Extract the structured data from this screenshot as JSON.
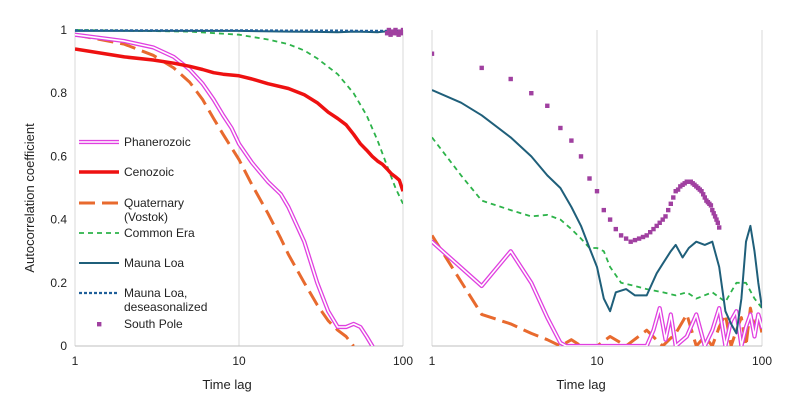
{
  "chart_data": [
    {
      "type": "line",
      "panel": "left",
      "x_scale": "log",
      "xlabel": "Time lag",
      "ylabel": "Autocorrelation coefficient",
      "xlim": [
        1,
        100
      ],
      "ylim": [
        0,
        1
      ],
      "x_ticks": [
        "1",
        "10",
        "100"
      ],
      "y_ticks": [
        "0",
        "0.2",
        "0.4",
        "0.6",
        "0.8",
        "1"
      ],
      "legend": [
        "Phanerozoic",
        "Cenozoic",
        "Quaternary",
        "(Vostok)",
        "Common Era",
        "Mauna Loa",
        "Mauna Loa,",
        "deseasonalized",
        "South Pole"
      ],
      "series": [
        {
          "name": "Phanerozoic",
          "color": "#e040e0",
          "style": "double",
          "x": [
            1,
            2,
            3,
            4,
            5,
            6,
            7,
            8,
            9,
            10,
            12,
            15,
            18,
            20,
            25,
            30,
            35,
            40,
            45,
            50,
            55,
            60,
            65
          ],
          "y": [
            0.985,
            0.965,
            0.945,
            0.915,
            0.875,
            0.83,
            0.78,
            0.73,
            0.69,
            0.64,
            0.58,
            0.52,
            0.48,
            0.44,
            0.33,
            0.2,
            0.11,
            0.06,
            0.06,
            0.07,
            0.06,
            0.03,
            0.0
          ]
        },
        {
          "name": "Cenozoic",
          "color": "#ee1111",
          "style": "thick",
          "x": [
            1,
            2,
            3,
            4,
            5,
            6,
            7,
            8,
            10,
            12,
            15,
            20,
            25,
            30,
            35,
            40,
            45,
            50,
            55,
            60,
            65,
            70,
            75,
            80,
            85,
            90,
            95,
            100
          ],
          "y": [
            0.94,
            0.915,
            0.905,
            0.895,
            0.885,
            0.875,
            0.865,
            0.86,
            0.855,
            0.845,
            0.83,
            0.815,
            0.795,
            0.77,
            0.74,
            0.72,
            0.7,
            0.67,
            0.64,
            0.62,
            0.6,
            0.585,
            0.575,
            0.56,
            0.545,
            0.535,
            0.525,
            0.49
          ]
        },
        {
          "name": "Quaternary (Vostok)",
          "color": "#e86a2e",
          "style": "longdash",
          "x": [
            1,
            2,
            3,
            4,
            5,
            6,
            7,
            8,
            10,
            12,
            15,
            18,
            20,
            25,
            30,
            35,
            40,
            45,
            50
          ],
          "y": [
            0.985,
            0.955,
            0.92,
            0.88,
            0.835,
            0.78,
            0.72,
            0.67,
            0.59,
            0.51,
            0.42,
            0.34,
            0.29,
            0.2,
            0.13,
            0.08,
            0.05,
            0.03,
            0.0
          ]
        },
        {
          "name": "Common Era",
          "color": "#2db34a",
          "style": "dash",
          "x": [
            1,
            5,
            10,
            15,
            20,
            25,
            30,
            40,
            50,
            60,
            70,
            80,
            90,
            100
          ],
          "y": [
            1.0,
            0.995,
            0.985,
            0.97,
            0.955,
            0.935,
            0.91,
            0.86,
            0.8,
            0.73,
            0.65,
            0.57,
            0.5,
            0.45
          ]
        },
        {
          "name": "Mauna Loa",
          "color": "#1f5f7a",
          "style": "solid",
          "x": [
            1,
            10,
            20,
            30,
            40,
            50,
            60,
            70,
            80,
            90,
            100
          ],
          "y": [
            0.997,
            0.997,
            0.995,
            0.994,
            0.993,
            0.995,
            0.994,
            0.993,
            0.996,
            0.994,
            0.995
          ]
        },
        {
          "name": "Mauna Loa, deseasonalized",
          "color": "#1f5f9a",
          "style": "dot",
          "x": [
            1,
            10,
            20,
            40,
            60,
            80,
            100
          ],
          "y": [
            0.999,
            0.999,
            0.998,
            0.998,
            0.997,
            0.997,
            0.997
          ]
        },
        {
          "name": "South Pole",
          "color": "#a040a0",
          "style": "marker",
          "x": [
            80,
            82,
            84,
            86,
            88,
            90,
            92,
            94,
            96,
            98,
            100
          ],
          "y": [
            0.99,
            1.0,
            0.985,
            0.995,
            0.99,
            1.0,
            0.99,
            0.985,
            0.995,
            0.99,
            1.0
          ]
        }
      ]
    },
    {
      "type": "line",
      "panel": "right",
      "x_scale": "log",
      "xlabel": "Time lag",
      "ylabel": "",
      "xlim": [
        1,
        100
      ],
      "ylim": [
        0,
        1
      ],
      "x_ticks": [
        "1",
        "10",
        "100"
      ],
      "series": [
        {
          "name": "Phanerozoic",
          "color": "#e040e0",
          "style": "double",
          "x": [
            1,
            2,
            3,
            4,
            5,
            6,
            6.5,
            20,
            22,
            24,
            26,
            28,
            30,
            35,
            40,
            45,
            50,
            55,
            60,
            65,
            70,
            75,
            80,
            85,
            90,
            95,
            100
          ],
          "y": [
            0.33,
            0.19,
            0.3,
            0.2,
            0.09,
            0.01,
            0.0,
            0.0,
            0.05,
            0.12,
            0.02,
            0.1,
            0.0,
            0.03,
            0.1,
            0.0,
            0.05,
            0.12,
            0.0,
            0.08,
            0.11,
            0.0,
            0.06,
            0.1,
            0.03,
            0.1,
            0.06
          ]
        },
        {
          "name": "Cenozoic",
          "color": "#ee1111",
          "style": "thick",
          "x": [],
          "y": []
        },
        {
          "name": "Quaternary (Vostok)",
          "color": "#e86a2e",
          "style": "longdash",
          "x": [
            1,
            2,
            3,
            4,
            5,
            6,
            7,
            8,
            9,
            10,
            12,
            15,
            20,
            25,
            30,
            35,
            40,
            45,
            50,
            55,
            60,
            65,
            70,
            75,
            80,
            85,
            90,
            95,
            100
          ],
          "y": [
            0.35,
            0.1,
            0.07,
            0.04,
            0.02,
            0.0,
            0.02,
            0.0,
            0.0,
            0.0,
            0.03,
            0.0,
            0.05,
            0.0,
            0.04,
            0.1,
            0.0,
            0.03,
            0.0,
            0.06,
            0.1,
            0.0,
            0.05,
            0.09,
            0.0,
            0.12,
            0.06,
            0.1,
            0.04
          ]
        },
        {
          "name": "Common Era",
          "color": "#2db34a",
          "style": "dash",
          "x": [
            1,
            1.5,
            2,
            3,
            4,
            5,
            6,
            7,
            8,
            9,
            10,
            11,
            12,
            14,
            17,
            20,
            25,
            30,
            35,
            40,
            50,
            60,
            70,
            80,
            90,
            100
          ],
          "y": [
            0.66,
            0.54,
            0.46,
            0.43,
            0.41,
            0.415,
            0.4,
            0.37,
            0.34,
            0.31,
            0.31,
            0.3,
            0.25,
            0.2,
            0.19,
            0.18,
            0.17,
            0.16,
            0.17,
            0.15,
            0.17,
            0.14,
            0.2,
            0.2,
            0.15,
            0.12
          ]
        },
        {
          "name": "Mauna Loa",
          "color": "#1f5f7a",
          "style": "solid",
          "x": [
            1,
            1.5,
            2,
            3,
            4,
            5,
            6,
            7,
            8,
            9,
            10,
            11,
            12,
            13,
            15,
            17,
            20,
            23,
            25,
            28,
            30,
            33,
            36,
            40,
            45,
            50,
            55,
            60,
            65,
            70,
            75,
            80,
            85,
            90,
            95,
            100
          ],
          "y": [
            0.81,
            0.77,
            0.73,
            0.66,
            0.6,
            0.54,
            0.5,
            0.44,
            0.38,
            0.31,
            0.25,
            0.15,
            0.11,
            0.17,
            0.18,
            0.16,
            0.16,
            0.23,
            0.26,
            0.3,
            0.32,
            0.28,
            0.31,
            0.33,
            0.32,
            0.33,
            0.25,
            0.11,
            0.07,
            0.04,
            0.15,
            0.33,
            0.38,
            0.3,
            0.2,
            0.12
          ]
        },
        {
          "name": "Mauna Loa, deseasonalized",
          "color": "#1f5f9a",
          "style": "dot",
          "x": [],
          "y": []
        },
        {
          "name": "South Pole",
          "color": "#a040a0",
          "style": "marker",
          "x": [
            1,
            2,
            3,
            4,
            5,
            6,
            7,
            8,
            9,
            10,
            11,
            12,
            13,
            14,
            15,
            16,
            17,
            18,
            19,
            20,
            21,
            22,
            23,
            24,
            25,
            26,
            27,
            28,
            29,
            30,
            31,
            32,
            33,
            34,
            35,
            36,
            37,
            38,
            39,
            40,
            41,
            42,
            43,
            44,
            45,
            46,
            47,
            48,
            49,
            50,
            51,
            52,
            53,
            54,
            55
          ],
          "y": [
            0.925,
            0.88,
            0.845,
            0.8,
            0.76,
            0.69,
            0.65,
            0.6,
            0.53,
            0.49,
            0.43,
            0.4,
            0.37,
            0.35,
            0.34,
            0.33,
            0.335,
            0.34,
            0.345,
            0.35,
            0.36,
            0.37,
            0.38,
            0.39,
            0.4,
            0.41,
            0.43,
            0.45,
            0.47,
            0.49,
            0.495,
            0.505,
            0.51,
            0.515,
            0.52,
            0.52,
            0.52,
            0.515,
            0.51,
            0.505,
            0.5,
            0.495,
            0.49,
            0.48,
            0.47,
            0.46,
            0.455,
            0.45,
            0.445,
            0.43,
            0.42,
            0.41,
            0.4,
            0.39,
            0.375
          ]
        }
      ]
    }
  ]
}
